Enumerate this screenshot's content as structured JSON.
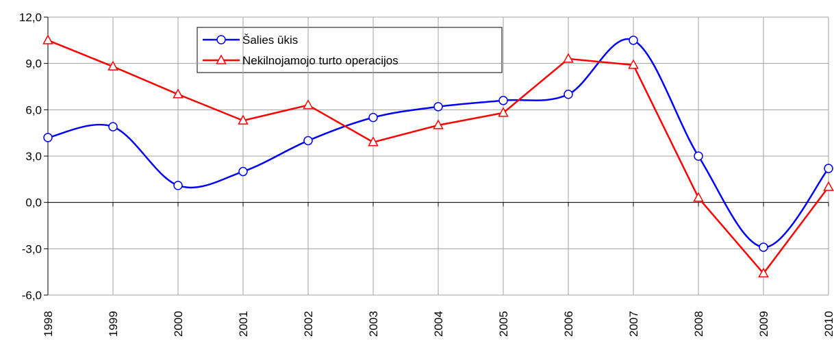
{
  "chart_data": {
    "type": "line",
    "categories": [
      "1998",
      "1999",
      "2000",
      "2001",
      "2002",
      "2003",
      "2004",
      "2005",
      "2006",
      "2007",
      "2008",
      "2009",
      "2010"
    ],
    "series": [
      {
        "name": "Šalies ūkis",
        "color": "#0000ff",
        "marker": "circle",
        "smooth": true,
        "values": [
          4.2,
          4.9,
          1.1,
          2.0,
          4.0,
          5.5,
          6.2,
          6.6,
          7.0,
          10.5,
          3.0,
          -2.9,
          2.2
        ]
      },
      {
        "name": "Nekilnojamojo turto operacijos",
        "color": "#ff0000",
        "marker": "triangle",
        "smooth": false,
        "values": [
          10.5,
          8.8,
          7.0,
          5.3,
          6.3,
          3.9,
          5.0,
          5.8,
          9.3,
          8.9,
          0.3,
          -4.6,
          1.0
        ]
      }
    ],
    "ylim": [
      -6,
      12
    ],
    "yticks": [
      {
        "value": -6,
        "label": "-6,0"
      },
      {
        "value": -3,
        "label": "-3,0"
      },
      {
        "value": 0,
        "label": "0,0"
      },
      {
        "value": 3,
        "label": "3,0"
      },
      {
        "value": 6,
        "label": "6,0"
      },
      {
        "value": 9,
        "label": "9,0"
      },
      {
        "value": 12,
        "label": "12,0"
      }
    ],
    "grid": true
  }
}
